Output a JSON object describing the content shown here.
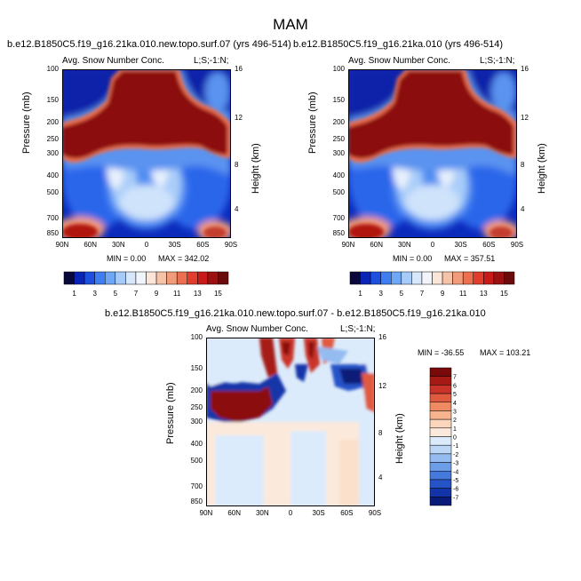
{
  "figure_title": "MAM",
  "cbar_top_labels": [
    "1",
    "3",
    "5",
    "7",
    "9",
    "11",
    "13",
    "15"
  ],
  "cbar_top_colors": [
    "#08083a",
    "#0a25b5",
    "#1e50e0",
    "#3f7df2",
    "#6fa7f7",
    "#a6cbf9",
    "#d6e6fb",
    "#f1f5fb",
    "#fbe4d8",
    "#f7c3a8",
    "#f29b7a",
    "#ec6f50",
    "#e13c2c",
    "#c81a18",
    "#9b1010",
    "#6b0a0a"
  ],
  "cbar_bot_labels": [
    "7",
    "6",
    "5",
    "4",
    "3",
    "2",
    "1",
    "0",
    "-1",
    "-2",
    "-3",
    "-4",
    "-5",
    "-6",
    "-7"
  ],
  "cbar_bot_colors": [
    "#7a0a0a",
    "#a61a16",
    "#c9342a",
    "#e05a40",
    "#f08a62",
    "#f7b38e",
    "#fbd5bc",
    "#fbe9dc",
    "#dcebfb",
    "#bcd7f6",
    "#94bcf0",
    "#6c9ee8",
    "#4679dc",
    "#2653c8",
    "#1234a8",
    "#0a1a78"
  ],
  "chart_data": [
    {
      "type": "heatmap",
      "title": "b.e12.B1850C5.f19_g16.21ka.010.new.topo.surf.07 (yrs 496-514)",
      "subtitle": "Avg. Snow Number Conc.",
      "corner_label": "L;S;-1:N;",
      "xlabel": "",
      "ylabel": "Pressure (mb)",
      "y2label": "Height (km)",
      "x_ticks": [
        "90N",
        "60N",
        "30N",
        "0",
        "30S",
        "60S",
        "90S"
      ],
      "y_ticks": [
        "100",
        "150",
        "200",
        "250",
        "300",
        "400",
        "500",
        "700",
        "850"
      ],
      "y2_ticks": [
        "16",
        "12",
        "8",
        "4"
      ],
      "min_text": "MIN =   0.00",
      "max_text": "MAX = 342.02",
      "min": 0.0,
      "max": 342.02
    },
    {
      "type": "heatmap",
      "title": "b.e12.B1850C5.f19_g16.21ka.010 (yrs 496-514)",
      "subtitle": "Avg. Snow Number Conc.",
      "corner_label": "L;S;-1:N;",
      "xlabel": "",
      "ylabel": "Pressure (mb)",
      "y2label": "Height (km)",
      "x_ticks": [
        "90N",
        "60N",
        "30N",
        "0",
        "30S",
        "60S",
        "90S"
      ],
      "y_ticks": [
        "100",
        "150",
        "200",
        "250",
        "300",
        "400",
        "500",
        "700",
        "850"
      ],
      "y2_ticks": [
        "16",
        "12",
        "8",
        "4"
      ],
      "min_text": "MIN =   0.00",
      "max_text": "MAX = 357.51",
      "min": 0.0,
      "max": 357.51
    },
    {
      "type": "heatmap",
      "title": "b.e12.B1850C5.f19_g16.21ka.010.new.topo.surf.07 - b.e12.B1850C5.f19_g16.21ka.010",
      "subtitle": "Avg. Snow Number Conc.",
      "corner_label": "L;S;-1:N;",
      "xlabel": "",
      "ylabel": "Pressure (mb)",
      "y2label": "Height (km)",
      "x_ticks": [
        "90N",
        "60N",
        "30N",
        "0",
        "30S",
        "60S",
        "90S"
      ],
      "y_ticks": [
        "100",
        "150",
        "200",
        "250",
        "300",
        "400",
        "500",
        "700",
        "850"
      ],
      "y2_ticks": [
        "16",
        "12",
        "8",
        "4"
      ],
      "min_text": "MIN = -36.55",
      "max_text": "MAX = 103.21",
      "min": -36.55,
      "max": 103.21
    }
  ]
}
